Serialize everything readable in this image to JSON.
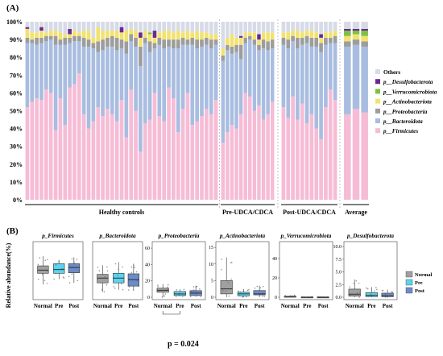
{
  "figure": {
    "panel_a_label": "(A)",
    "panel_b_label": "(B)",
    "ylabel_b": "Relative abundance(%)",
    "pvalue_text": "p = 0.024"
  },
  "chart_data": [
    {
      "type": "bar",
      "stacked": true,
      "panel": "A",
      "yticks": [
        "0%",
        "10%",
        "20%",
        "30%",
        "40%",
        "50%",
        "60%",
        "70%",
        "80%",
        "90%",
        "100%"
      ],
      "ylim": [
        0,
        100
      ],
      "groups": [
        {
          "name": "Healthy controls",
          "n": 41
        },
        {
          "name": "Pre-UDCA/CDCA",
          "n": 12
        },
        {
          "name": "Post-UDCA/CDCA",
          "n": 12
        },
        {
          "name": "Average",
          "n": 3
        }
      ],
      "legend": [
        "Others",
        "p__Desulfobacterota",
        "p__Verrucomicrobiota",
        "p__Actinobacteriota",
        "p__Proteobacteria",
        "p__Bacteroidota",
        "p__Firmicutes"
      ],
      "legend_colors": [
        "#d7dbe6",
        "#6a2a92",
        "#7cc144",
        "#f3e26f",
        "#9d9d9d",
        "#a9bde0",
        "#f6bcd6"
      ],
      "stack_order": [
        "p__Firmicutes",
        "p__Bacteroidota",
        "p__Proteobacteria",
        "p__Actinobacteriota",
        "p__Verrucomicrobiota",
        "p__Desulfobacterota",
        "Others"
      ],
      "samples": [
        [
          52,
          36,
          3,
          5,
          0,
          1,
          3
        ],
        [
          55,
          33,
          2,
          4,
          0,
          0,
          6
        ],
        [
          57,
          30,
          4,
          3,
          0,
          0,
          6
        ],
        [
          56,
          32,
          3,
          4,
          0,
          2,
          3
        ],
        [
          62,
          27,
          3,
          2,
          0,
          0,
          6
        ],
        [
          60,
          30,
          2,
          3,
          0,
          0,
          5
        ],
        [
          39,
          48,
          5,
          3,
          0,
          0,
          5
        ],
        [
          57,
          30,
          3,
          4,
          0,
          0,
          6
        ],
        [
          42,
          45,
          4,
          2,
          0,
          0,
          7
        ],
        [
          63,
          25,
          3,
          2,
          0,
          3,
          4
        ],
        [
          65,
          24,
          3,
          3,
          0,
          0,
          5
        ],
        [
          71,
          18,
          3,
          2,
          0,
          0,
          6
        ],
        [
          48,
          38,
          5,
          4,
          0,
          0,
          5
        ],
        [
          40,
          46,
          4,
          5,
          0,
          0,
          5
        ],
        [
          44,
          41,
          3,
          3,
          0,
          0,
          9
        ],
        [
          52,
          31,
          6,
          8,
          0,
          0,
          3
        ],
        [
          47,
          37,
          6,
          5,
          0,
          0,
          5
        ],
        [
          51,
          35,
          5,
          4,
          0,
          0,
          5
        ],
        [
          48,
          38,
          6,
          3,
          0,
          0,
          5
        ],
        [
          44,
          40,
          7,
          4,
          0,
          0,
          5
        ],
        [
          56,
          29,
          5,
          4,
          0,
          3,
          3
        ],
        [
          35,
          47,
          7,
          6,
          0,
          0,
          5
        ],
        [
          62,
          27,
          4,
          3,
          0,
          0,
          4
        ],
        [
          50,
          36,
          5,
          4,
          0,
          0,
          5
        ],
        [
          27,
          48,
          11,
          5,
          0,
          3,
          6
        ],
        [
          43,
          45,
          3,
          4,
          0,
          0,
          5
        ],
        [
          45,
          38,
          6,
          4,
          1,
          0,
          6
        ],
        [
          60,
          25,
          3,
          3,
          0,
          4,
          5
        ],
        [
          47,
          40,
          4,
          3,
          0,
          0,
          6
        ],
        [
          44,
          41,
          5,
          5,
          0,
          0,
          5
        ],
        [
          63,
          23,
          4,
          5,
          0,
          0,
          5
        ],
        [
          57,
          28,
          5,
          4,
          0,
          0,
          6
        ],
        [
          38,
          47,
          5,
          5,
          0,
          0,
          5
        ],
        [
          51,
          36,
          4,
          3,
          0,
          0,
          6
        ],
        [
          60,
          27,
          3,
          5,
          0,
          0,
          5
        ],
        [
          42,
          45,
          4,
          3,
          0,
          0,
          6
        ],
        [
          44,
          41,
          5,
          5,
          0,
          0,
          5
        ],
        [
          47,
          39,
          4,
          4,
          0,
          0,
          6
        ],
        [
          51,
          36,
          4,
          3,
          0,
          0,
          6
        ],
        [
          48,
          37,
          5,
          3,
          0,
          0,
          7
        ],
        [
          56,
          31,
          3,
          3,
          0,
          0,
          7
        ],
        [
          32,
          46,
          3,
          4,
          0,
          0,
          15
        ],
        [
          38,
          46,
          3,
          4,
          0,
          0,
          9
        ],
        [
          42,
          40,
          4,
          7,
          0,
          0,
          7
        ],
        [
          40,
          43,
          4,
          4,
          0,
          0,
          9
        ],
        [
          48,
          31,
          8,
          4,
          0,
          1,
          8
        ],
        [
          60,
          28,
          3,
          3,
          0,
          0,
          6
        ],
        [
          58,
          32,
          2,
          2,
          0,
          0,
          6
        ],
        [
          50,
          37,
          3,
          4,
          0,
          0,
          6
        ],
        [
          53,
          31,
          3,
          3,
          0,
          3,
          7
        ],
        [
          45,
          40,
          5,
          4,
          0,
          0,
          6
        ],
        [
          48,
          36,
          5,
          5,
          0,
          0,
          6
        ],
        [
          55,
          30,
          5,
          4,
          0,
          0,
          6
        ],
        [
          52,
          35,
          4,
          3,
          0,
          0,
          6
        ],
        [
          46,
          39,
          5,
          4,
          0,
          0,
          6
        ],
        [
          58,
          31,
          3,
          3,
          0,
          0,
          5
        ],
        [
          45,
          40,
          6,
          4,
          0,
          0,
          5
        ],
        [
          54,
          33,
          4,
          3,
          0,
          0,
          6
        ],
        [
          43,
          45,
          4,
          3,
          0,
          0,
          5
        ],
        [
          48,
          38,
          5,
          4,
          0,
          0,
          5
        ],
        [
          40,
          46,
          5,
          3,
          0,
          0,
          6
        ],
        [
          34,
          49,
          5,
          3,
          0,
          2,
          7
        ],
        [
          52,
          35,
          4,
          3,
          0,
          0,
          6
        ],
        [
          62,
          26,
          3,
          3,
          0,
          0,
          6
        ],
        [
          56,
          32,
          4,
          3,
          0,
          0,
          5
        ],
        [
          48,
          38,
          3,
          3,
          3,
          1,
          4
        ],
        [
          51,
          36,
          3,
          3,
          2,
          1,
          4
        ],
        [
          49,
          37,
          3,
          3,
          3,
          1,
          4
        ]
      ]
    },
    {
      "type": "boxplot",
      "panel": "B",
      "categories": [
        "Normal",
        "Pre",
        "Post"
      ],
      "legend": [
        "Normal",
        "Pre",
        "Post"
      ],
      "legend_colors": [
        "#a0a0a0",
        "#5ad4f0",
        "#6c8cc8"
      ],
      "subplots": [
        {
          "title": "p_Firmicutes",
          "ylim": [
            0,
            100
          ],
          "yticks": [],
          "boxes": [
            [
              24,
              45,
              51,
              59,
              77
            ],
            [
              34,
              45,
              52,
              63,
              70
            ],
            [
              27,
              46,
              56,
              63,
              75
            ]
          ]
        },
        {
          "title": "p_Bacteroidota",
          "ylim": [
            0,
            100
          ],
          "yticks": [],
          "boxes": [
            [
              10,
              27,
              36,
              43,
              60
            ],
            [
              14,
              27,
              36,
              45,
              66
            ],
            [
              12,
              21,
              33,
              44,
              63
            ]
          ]
        },
        {
          "title": "p_Proteobacteria",
          "ylim": [
            0,
            65
          ],
          "yticks": [
            "0",
            "20",
            "40",
            "60"
          ],
          "boxes": [
            [
              0,
              6,
              8.5,
              11,
              16
            ],
            [
              1,
              2,
              4,
              7,
              10
            ],
            [
              0.5,
              2,
              5,
              8,
              14
            ]
          ]
        },
        {
          "title": "p_Actinobacteriota",
          "ylim": [
            0,
            16
          ],
          "yticks": [
            "0",
            "5",
            "10",
            "15"
          ],
          "boxes": [
            [
              0,
              1,
              2.5,
              5,
              12
            ],
            [
              0,
              0.4,
              1,
              1.5,
              2.5
            ],
            [
              0,
              0.7,
              1,
              2,
              3.5
            ]
          ]
        },
        {
          "title": "p_Verrucomicrobiota",
          "ylim": [
            0,
            55
          ],
          "yticks": [
            "0",
            "20",
            "40"
          ],
          "boxes": [
            [
              0,
              0,
              0.3,
              1,
              2
            ],
            [
              0,
              0,
              0,
              0.3,
              0.6
            ],
            [
              0,
              0,
              0,
              0.3,
              0.6
            ]
          ]
        },
        {
          "title": "p_Desulfobacterota",
          "ylim": [
            0,
            10.5
          ],
          "yticks": [
            "0.0",
            "2.5",
            "5.0",
            "7.5",
            "10.0"
          ],
          "boxes": [
            [
              0,
              0.2,
              0.6,
              1.6,
              3.5
            ],
            [
              0,
              0.1,
              0.4,
              0.9,
              2
            ],
            [
              0,
              0.1,
              0.3,
              0.8,
              1.5
            ]
          ]
        }
      ]
    }
  ]
}
